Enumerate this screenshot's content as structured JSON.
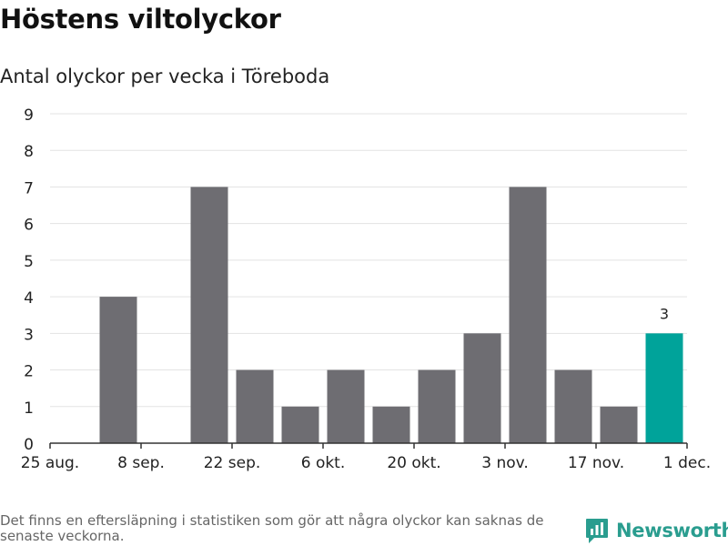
{
  "header": {
    "title": "Höstens viltolyckor",
    "subtitle": "Antal olyckor per vecka i Töreboda"
  },
  "chart_data": {
    "type": "bar",
    "x_start": "2025-08-25",
    "bar_width_days": 7,
    "x": [
      "2025-08-25",
      "2025-09-01",
      "2025-09-08",
      "2025-09-15",
      "2025-09-22",
      "2025-09-29",
      "2025-10-06",
      "2025-10-13",
      "2025-10-20",
      "2025-10-27",
      "2025-11-03",
      "2025-11-10",
      "2025-11-17",
      "2025-11-24"
    ],
    "values": [
      0,
      4,
      0,
      7,
      2,
      1,
      2,
      1,
      2,
      3,
      7,
      2,
      1,
      3
    ],
    "highlight_index": 13,
    "highlight_label": "3",
    "ylim": [
      0,
      9
    ],
    "y_ticks": [
      "0",
      "1",
      "2",
      "3",
      "4",
      "5",
      "6",
      "7",
      "8",
      "9"
    ],
    "x_ticks": [
      {
        "date": "2025-08-25",
        "label": "25 aug."
      },
      {
        "date": "2025-09-08",
        "label": "8 sep."
      },
      {
        "date": "2025-09-22",
        "label": "22 sep."
      },
      {
        "date": "2025-10-06",
        "label": "6 okt."
      },
      {
        "date": "2025-10-20",
        "label": "20 okt."
      },
      {
        "date": "2025-11-03",
        "label": "3 nov."
      },
      {
        "date": "2025-11-17",
        "label": "17 nov."
      },
      {
        "date": "2025-12-01",
        "label": "1 dec."
      }
    ],
    "grid": true,
    "colors": {
      "bar": "#6e6d72",
      "highlight": "#00a39a",
      "grid": "#e3e3e3",
      "axis": "#333333"
    }
  },
  "footer": {
    "note": "Det finns en eftersläpning i statistiken som gör att några olyckor kan saknas de senaste veckorna.",
    "brand": "Newsworthy",
    "brand_icon": "newsworthy-logo-icon",
    "brand_color": "#2a9d8f"
  }
}
